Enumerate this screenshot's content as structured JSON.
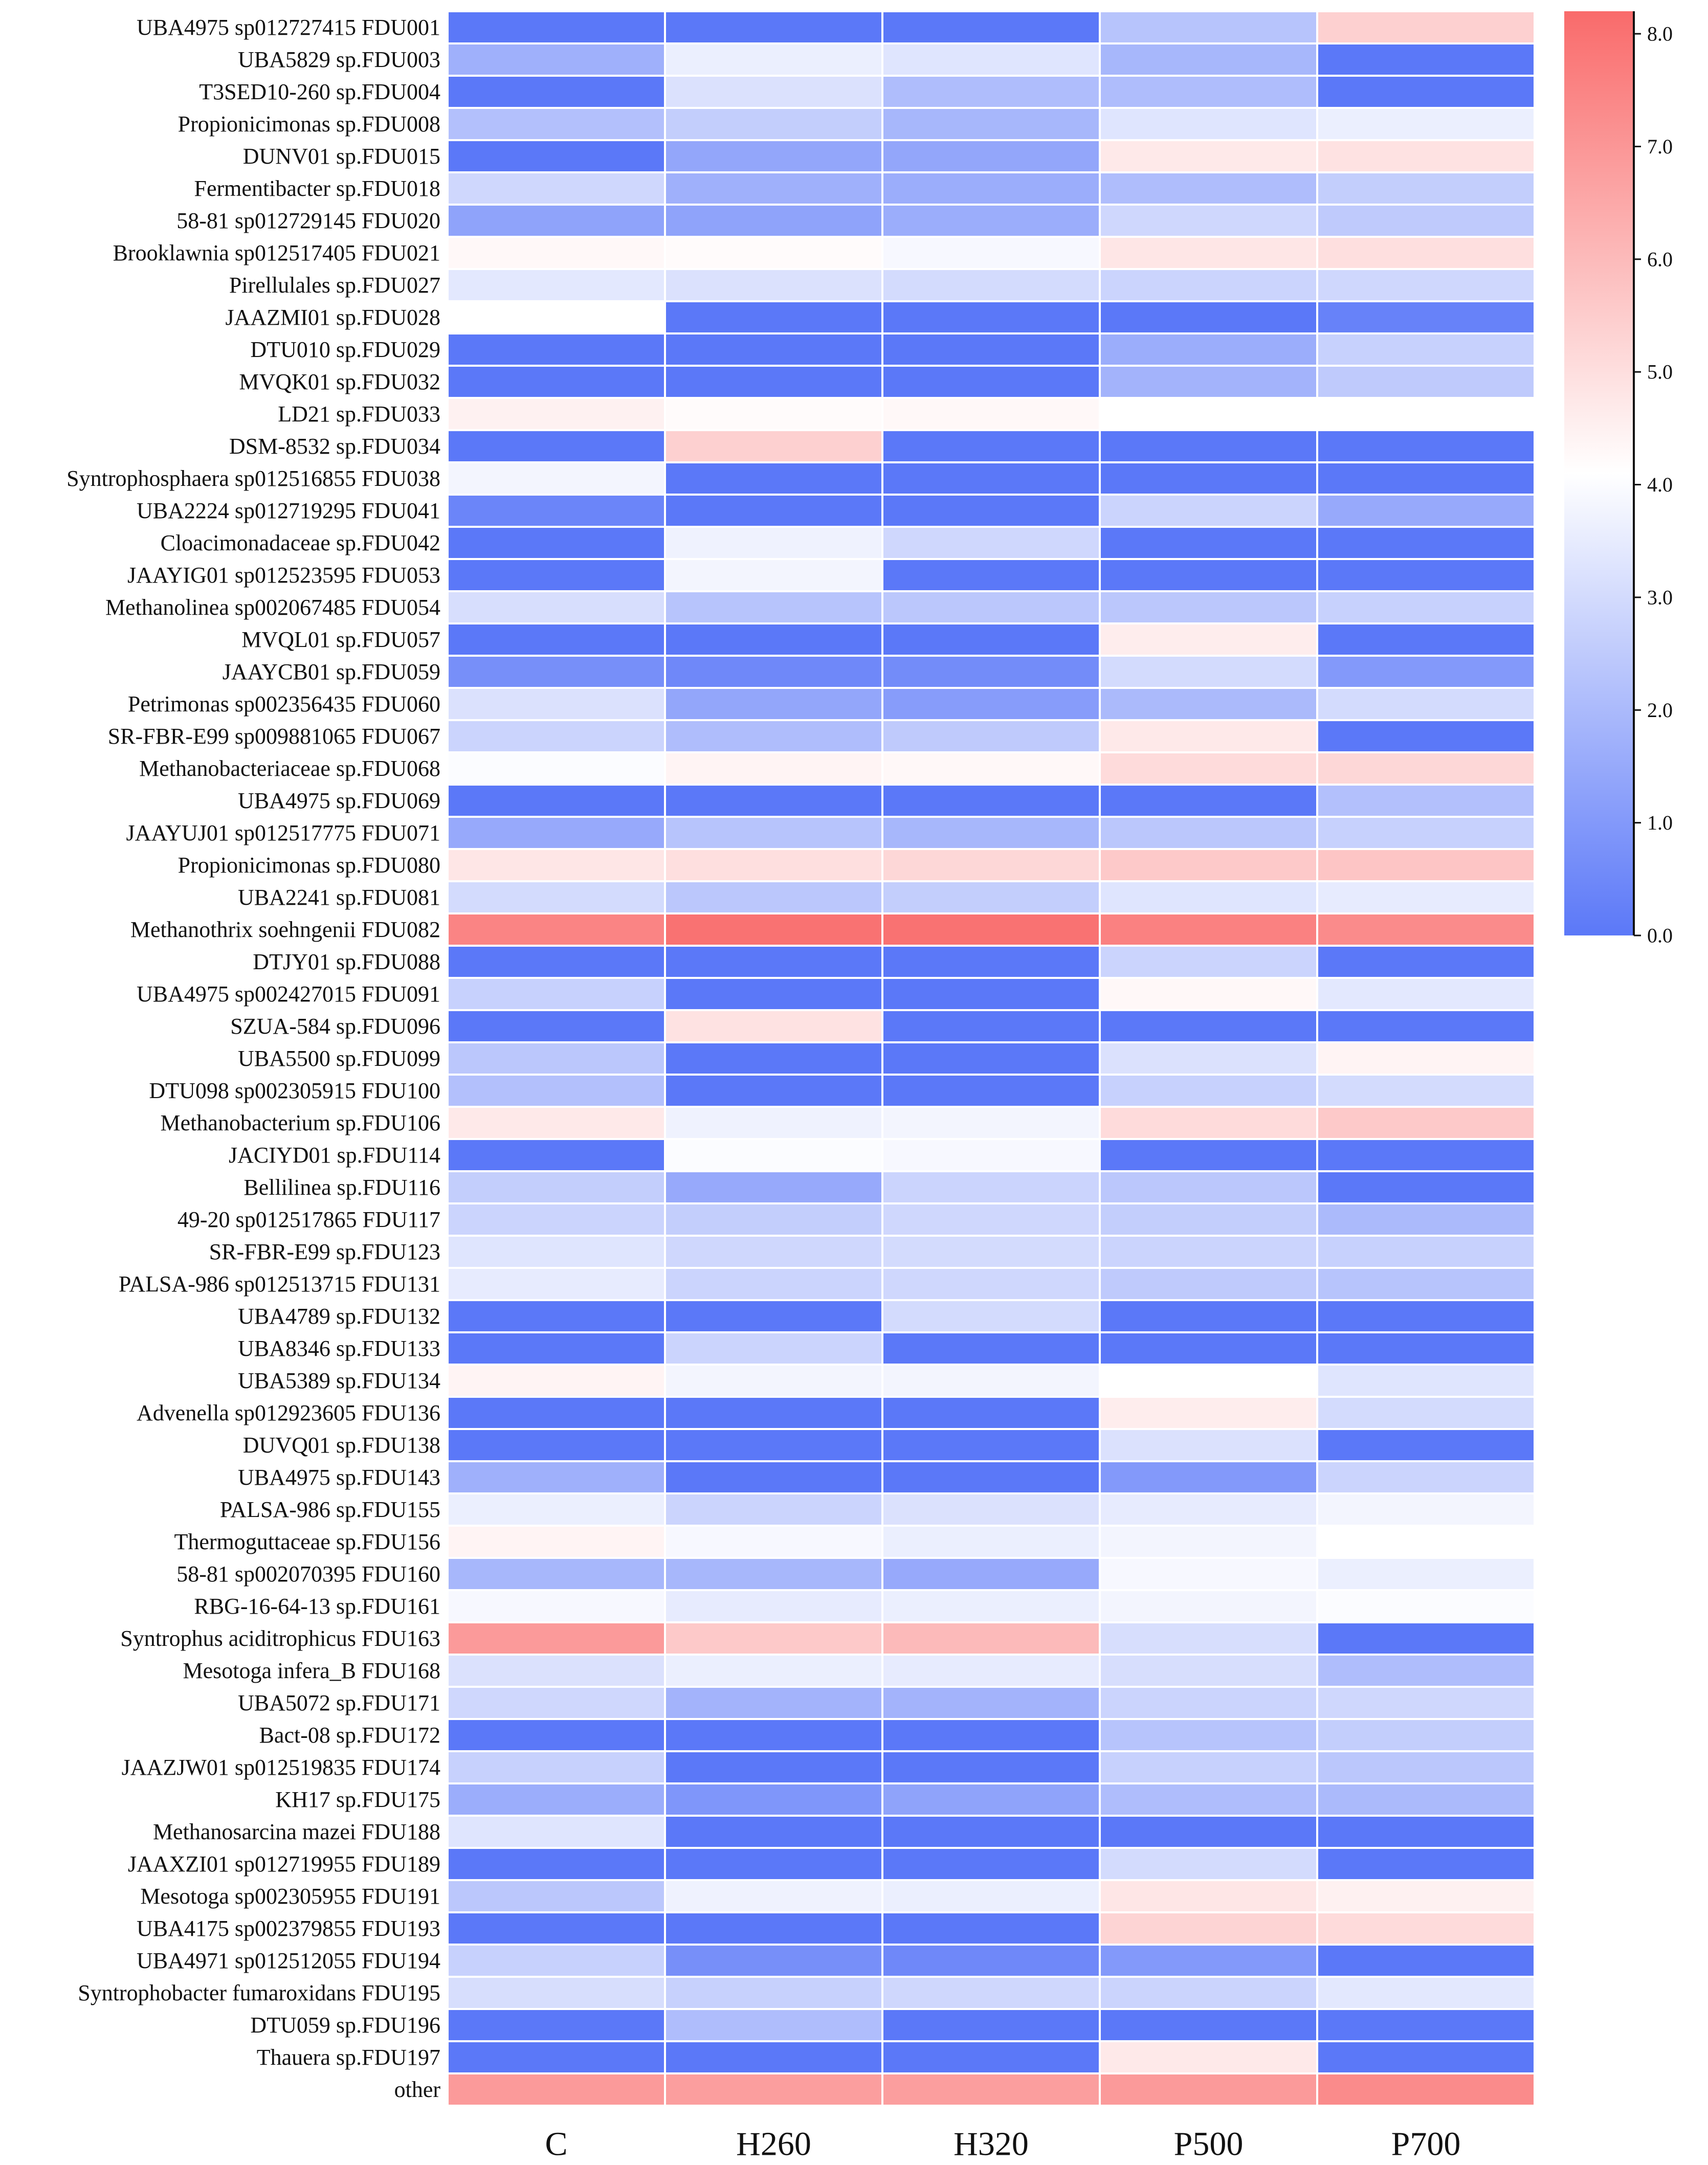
{
  "chart_data": {
    "type": "heatmap",
    "columns": [
      "C",
      "H260",
      "H320",
      "P500",
      "P700"
    ],
    "rows": [
      {
        "label": "UBA4975 sp012727415 FDU001",
        "values": [
          0.0,
          0.0,
          0.0,
          2.3,
          5.4
        ]
      },
      {
        "label": "UBA5829 sp.FDU003",
        "values": [
          1.7,
          3.6,
          3.3,
          1.9,
          0.0
        ]
      },
      {
        "label": "T3SED10-260 sp.FDU004",
        "values": [
          0.0,
          3.2,
          2.1,
          2.1,
          0.0
        ]
      },
      {
        "label": "Propionicimonas sp.FDU008",
        "values": [
          2.2,
          2.6,
          1.9,
          3.3,
          3.6
        ]
      },
      {
        "label": "DUNV01 sp.FDU015",
        "values": [
          0.0,
          1.4,
          1.4,
          4.7,
          4.9
        ]
      },
      {
        "label": "Fermentibacter sp.FDU018",
        "values": [
          2.9,
          1.7,
          1.6,
          2.1,
          2.6
        ]
      },
      {
        "label": "58-81 sp012729145 FDU020",
        "values": [
          1.3,
          1.3,
          1.6,
          2.9,
          2.5
        ]
      },
      {
        "label": "Brooklawnia sp012517405 FDU021",
        "values": [
          4.3,
          4.2,
          3.9,
          4.8,
          5.0
        ]
      },
      {
        "label": "Pirellulales sp.FDU027",
        "values": [
          3.4,
          3.2,
          3.0,
          2.8,
          2.9
        ]
      },
      {
        "label": "JAAZMI01 sp.FDU028",
        "values": [
          4.1,
          0.0,
          0.0,
          0.0,
          0.3
        ]
      },
      {
        "label": "DTU010 sp.FDU029",
        "values": [
          0.0,
          0.0,
          0.0,
          1.6,
          2.7
        ]
      },
      {
        "label": "MVQK01 sp.FDU032",
        "values": [
          0.0,
          0.0,
          0.0,
          1.8,
          2.5
        ]
      },
      {
        "label": "LD21 sp.FDU033",
        "values": [
          4.5,
          4.2,
          4.3,
          4.1,
          4.1
        ]
      },
      {
        "label": "DSM-8532 sp.FDU034",
        "values": [
          0.0,
          5.4,
          0.0,
          0.0,
          0.0
        ]
      },
      {
        "label": "Syntrophosphaera sp012516855 FDU038",
        "values": [
          3.8,
          0.0,
          0.0,
          0.0,
          0.0
        ]
      },
      {
        "label": "UBA2224 sp012719295 FDU041",
        "values": [
          0.4,
          0.0,
          0.0,
          2.8,
          1.5
        ]
      },
      {
        "label": "Cloacimonadaceae sp.FDU042",
        "values": [
          0.0,
          3.7,
          2.9,
          0.0,
          0.0
        ]
      },
      {
        "label": "JAAYIG01 sp012523595 FDU053",
        "values": [
          0.0,
          3.8,
          0.0,
          0.0,
          0.0
        ]
      },
      {
        "label": "Methanolinea sp002067485 FDU054",
        "values": [
          3.1,
          2.3,
          2.4,
          2.4,
          2.7
        ]
      },
      {
        "label": "MVQL01 sp.FDU057",
        "values": [
          0.0,
          0.0,
          0.0,
          4.6,
          0.0
        ]
      },
      {
        "label": "JAAYCB01 sp.FDU059",
        "values": [
          0.7,
          0.5,
          0.6,
          3.0,
          1.0
        ]
      },
      {
        "label": "Petrimonas sp002356435 FDU060",
        "values": [
          3.2,
          1.4,
          1.1,
          2.0,
          3.0
        ]
      },
      {
        "label": "SR-FBR-E99 sp009881065 FDU067",
        "values": [
          2.8,
          2.1,
          2.5,
          4.7,
          0.0
        ]
      },
      {
        "label": "Methanobacteriaceae sp.FDU068",
        "values": [
          4.0,
          4.4,
          4.3,
          5.1,
          5.2
        ]
      },
      {
        "label": "UBA4975 sp.FDU069",
        "values": [
          0.0,
          0.0,
          0.0,
          0.0,
          2.2
        ]
      },
      {
        "label": "JAAYUJ01 sp012517775 FDU071",
        "values": [
          1.5,
          2.3,
          1.9,
          2.4,
          2.7
        ]
      },
      {
        "label": "Propionicimonas sp.FDU080",
        "values": [
          4.8,
          5.0,
          5.2,
          5.6,
          5.7
        ]
      },
      {
        "label": "UBA2241 sp.FDU081",
        "values": [
          3.0,
          2.4,
          2.6,
          3.3,
          3.5
        ]
      },
      {
        "label": "Methanothrix soehngenii FDU082",
        "values": [
          7.5,
          8.0,
          8.0,
          7.6,
          7.3
        ]
      },
      {
        "label": "DTJY01 sp.FDU088",
        "values": [
          0.0,
          0.0,
          0.0,
          2.8,
          0.0
        ]
      },
      {
        "label": "UBA4975 sp002427015 FDU091",
        "values": [
          2.7,
          0.0,
          0.0,
          4.3,
          3.4
        ]
      },
      {
        "label": "SZUA-584 sp.FDU096",
        "values": [
          0.0,
          4.9,
          0.0,
          0.0,
          0.0
        ]
      },
      {
        "label": "UBA5500 sp.FDU099",
        "values": [
          2.4,
          0.0,
          0.0,
          3.2,
          4.4
        ]
      },
      {
        "label": "DTU098 sp002305915 FDU100",
        "values": [
          2.2,
          0.0,
          0.0,
          2.7,
          3.0
        ]
      },
      {
        "label": "Methanobacterium sp.FDU106",
        "values": [
          4.7,
          3.7,
          3.8,
          5.1,
          5.6
        ]
      },
      {
        "label": "JACIYD01 sp.FDU114",
        "values": [
          0.0,
          4.0,
          3.9,
          0.0,
          0.0
        ]
      },
      {
        "label": "Bellilinea sp.FDU116",
        "values": [
          2.6,
          1.5,
          2.8,
          2.4,
          0.0
        ]
      },
      {
        "label": "49-20 sp012517865 FDU117",
        "values": [
          2.8,
          2.6,
          2.9,
          2.6,
          2.0
        ]
      },
      {
        "label": "SR-FBR-E99 sp.FDU123",
        "values": [
          3.3,
          2.9,
          3.0,
          2.8,
          2.7
        ]
      },
      {
        "label": "PALSA-986 sp012513715 FDU131",
        "values": [
          3.5,
          2.8,
          2.9,
          2.5,
          2.3
        ]
      },
      {
        "label": "UBA4789 sp.FDU132",
        "values": [
          0.0,
          0.0,
          3.0,
          0.0,
          0.0
        ]
      },
      {
        "label": "UBA8346 sp.FDU133",
        "values": [
          0.0,
          2.8,
          0.0,
          0.0,
          0.0
        ]
      },
      {
        "label": "UBA5389 sp.FDU134",
        "values": [
          4.4,
          3.8,
          3.8,
          4.1,
          3.3
        ]
      },
      {
        "label": "Advenella sp012923605 FDU136",
        "values": [
          0.0,
          0.0,
          0.0,
          4.6,
          3.0
        ]
      },
      {
        "label": "DUVQ01 sp.FDU138",
        "values": [
          0.0,
          0.0,
          0.0,
          3.2,
          0.0
        ]
      },
      {
        "label": "UBA4975 sp.FDU143",
        "values": [
          1.7,
          0.0,
          0.0,
          1.0,
          2.8
        ]
      },
      {
        "label": "PALSA-986 sp.FDU155",
        "values": [
          3.6,
          2.8,
          3.2,
          3.5,
          3.8
        ]
      },
      {
        "label": "Thermoguttaceae sp.FDU156",
        "values": [
          4.4,
          3.9,
          3.6,
          3.8,
          4.1
        ]
      },
      {
        "label": "58-81 sp002070395 FDU160",
        "values": [
          1.9,
          1.9,
          1.5,
          3.9,
          3.6
        ]
      },
      {
        "label": "RBG-16-64-13 sp.FDU161",
        "values": [
          3.9,
          3.5,
          3.6,
          3.8,
          4.0
        ]
      },
      {
        "label": "Syntrophus aciditrophicus FDU163",
        "values": [
          6.9,
          5.6,
          6.0,
          3.1,
          0.0
        ]
      },
      {
        "label": "Mesotoga infera_B FDU168",
        "values": [
          3.2,
          3.6,
          3.5,
          3.1,
          2.1
        ]
      },
      {
        "label": "UBA5072 sp.FDU171",
        "values": [
          2.9,
          1.8,
          1.8,
          2.8,
          2.9
        ]
      },
      {
        "label": "Bact-08 sp.FDU172",
        "values": [
          0.0,
          0.0,
          0.0,
          2.3,
          2.6
        ]
      },
      {
        "label": "JAAZJW01 sp012519835 FDU174",
        "values": [
          2.7,
          0.0,
          0.0,
          2.7,
          2.4
        ]
      },
      {
        "label": "KH17 sp.FDU175",
        "values": [
          1.6,
          0.9,
          1.3,
          2.1,
          2.0
        ]
      },
      {
        "label": "Methanosarcina mazei FDU188",
        "values": [
          3.3,
          0.0,
          0.0,
          0.0,
          0.0
        ]
      },
      {
        "label": "JAAXZI01 sp012719955 FDU189",
        "values": [
          0.0,
          0.0,
          0.0,
          3.0,
          0.0
        ]
      },
      {
        "label": "Mesotoga sp002305955 FDU191",
        "values": [
          2.4,
          3.7,
          3.6,
          4.8,
          4.5
        ]
      },
      {
        "label": "UBA4175 sp002379855 FDU193",
        "values": [
          0.0,
          0.0,
          0.0,
          5.3,
          5.1
        ]
      },
      {
        "label": "UBA4971 sp012512055 FDU194",
        "values": [
          2.7,
          0.7,
          0.5,
          1.0,
          0.0
        ]
      },
      {
        "label": "Syntrophobacter fumaroxidans FDU195",
        "values": [
          3.1,
          2.7,
          2.9,
          2.8,
          3.4
        ]
      },
      {
        "label": "DTU059 sp.FDU196",
        "values": [
          0.0,
          2.1,
          0.0,
          0.0,
          0.0
        ]
      },
      {
        "label": "Thauera sp.FDU197",
        "values": [
          0.0,
          0.0,
          0.0,
          4.7,
          0.0
        ]
      },
      {
        "label": "other",
        "values": [
          6.9,
          6.8,
          6.8,
          6.9,
          7.3
        ]
      }
    ],
    "colorbar": {
      "min": 0.0,
      "max": 8.2,
      "ticks": [
        "0.0",
        "1.0",
        "2.0",
        "3.0",
        "4.0",
        "5.0",
        "6.0",
        "7.0",
        "8.0"
      ],
      "colors": [
        "#5b78f8",
        "#ffffff",
        "#f96b6b"
      ],
      "midpoint": 4.1
    },
    "title": "",
    "xlabel": "",
    "ylabel": ""
  }
}
